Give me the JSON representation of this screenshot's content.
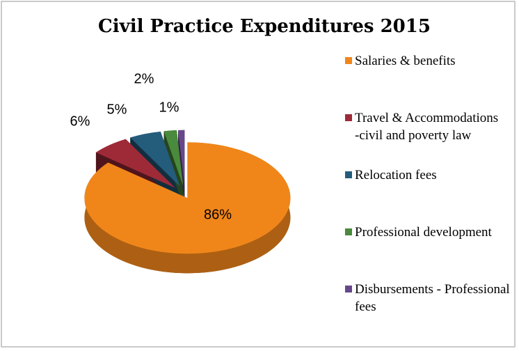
{
  "chart_data": {
    "type": "pie",
    "title": "Civil Practice Expenditures 2015",
    "categories": [
      "Salaries & benefits",
      "Travel & Accommodations -civil and poverty law",
      "Relocation fees",
      "Professional development",
      "Disbursements - Professional fees"
    ],
    "values": [
      86,
      6,
      5,
      2,
      1
    ],
    "value_labels": [
      "86%",
      "6%",
      "5%",
      "2%",
      "1%"
    ],
    "colors": [
      "#f0861a",
      "#9e2a38",
      "#245c7c",
      "#4a8a3c",
      "#66488a"
    ],
    "legend": "right"
  }
}
